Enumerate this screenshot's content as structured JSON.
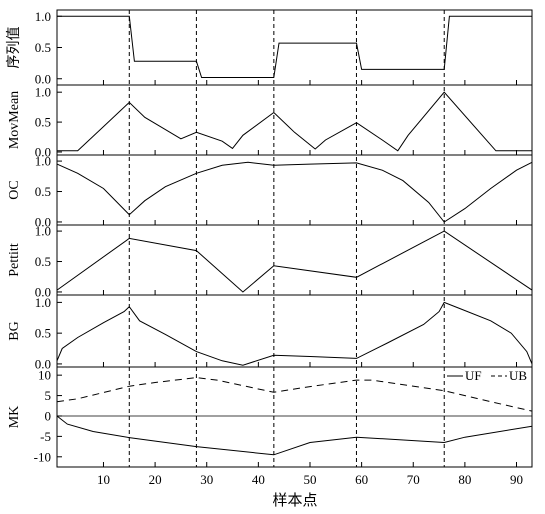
{
  "figure": {
    "xlabel": "样本点",
    "xlim": [
      1,
      93
    ],
    "xticks": [
      10,
      20,
      30,
      40,
      50,
      60,
      70,
      80,
      90
    ],
    "change_points": [
      15,
      28,
      43,
      59,
      76
    ]
  },
  "chart_data": [
    {
      "type": "line",
      "ylabel": "序列值",
      "ylim": [
        -0.1,
        1.1
      ],
      "yticks": [
        "0.0",
        "0.5",
        "1.0"
      ],
      "series": [
        {
          "style": "solid",
          "color": "#000000",
          "points": [
            [
              1,
              1
            ],
            [
              15,
              1
            ],
            [
              16,
              0.28
            ],
            [
              28,
              0.28
            ],
            [
              29,
              0.02
            ],
            [
              43,
              0.02
            ],
            [
              44,
              0.57
            ],
            [
              59,
              0.57
            ],
            [
              60,
              0.15
            ],
            [
              76,
              0.15
            ],
            [
              77,
              1
            ],
            [
              93,
              1
            ]
          ]
        }
      ]
    },
    {
      "type": "line",
      "ylabel": "MovMean",
      "ylim": [
        -0.05,
        1.12
      ],
      "yticks": [
        "0.0",
        "0.5",
        "1.0"
      ],
      "series": [
        {
          "style": "solid",
          "color": "#000000",
          "points": [
            [
              1,
              0.02
            ],
            [
              5,
              0.02
            ],
            [
              15,
              0.83
            ],
            [
              18,
              0.58
            ],
            [
              25,
              0.22
            ],
            [
              28,
              0.33
            ],
            [
              33,
              0.18
            ],
            [
              35,
              0.06
            ],
            [
              37,
              0.28
            ],
            [
              43,
              0.66
            ],
            [
              47,
              0.33
            ],
            [
              51,
              0.05
            ],
            [
              53,
              0.2
            ],
            [
              59,
              0.49
            ],
            [
              64,
              0.2
            ],
            [
              67,
              0.02
            ],
            [
              69,
              0.28
            ],
            [
              76,
              1.0
            ],
            [
              86,
              0.02
            ],
            [
              93,
              0.02
            ]
          ]
        }
      ]
    },
    {
      "type": "line",
      "ylabel": "OC",
      "ylim": [
        -0.05,
        1.1
      ],
      "yticks": [
        "0.0",
        "0.5",
        "1.0"
      ],
      "series": [
        {
          "style": "solid",
          "color": "#000000",
          "points": [
            [
              1,
              0.95
            ],
            [
              5,
              0.8
            ],
            [
              10,
              0.55
            ],
            [
              15,
              0.12
            ],
            [
              18,
              0.35
            ],
            [
              22,
              0.58
            ],
            [
              28,
              0.8
            ],
            [
              33,
              0.93
            ],
            [
              38,
              0.98
            ],
            [
              43,
              0.93
            ],
            [
              50,
              0.95
            ],
            [
              59,
              0.97
            ],
            [
              64,
              0.85
            ],
            [
              68,
              0.68
            ],
            [
              73,
              0.32
            ],
            [
              76,
              0.0
            ],
            [
              80,
              0.22
            ],
            [
              85,
              0.55
            ],
            [
              90,
              0.85
            ],
            [
              93,
              0.98
            ]
          ]
        }
      ]
    },
    {
      "type": "line",
      "ylabel": "Pettitt",
      "ylim": [
        -0.05,
        1.1
      ],
      "yticks": [
        "0.0",
        "0.5",
        "1.0"
      ],
      "series": [
        {
          "style": "solid",
          "color": "#000000",
          "points": [
            [
              1,
              0.03
            ],
            [
              15,
              0.88
            ],
            [
              28,
              0.68
            ],
            [
              37,
              0.0
            ],
            [
              43,
              0.43
            ],
            [
              59,
              0.24
            ],
            [
              76,
              1.0
            ],
            [
              93,
              0.03
            ]
          ]
        }
      ]
    },
    {
      "type": "line",
      "ylabel": "BG",
      "ylim": [
        -0.05,
        1.12
      ],
      "yticks": [
        "0.0",
        "0.5",
        "1.0"
      ],
      "series": [
        {
          "style": "solid",
          "color": "#000000",
          "points": [
            [
              1,
              0.05
            ],
            [
              2,
              0.25
            ],
            [
              5,
              0.43
            ],
            [
              10,
              0.67
            ],
            [
              14,
              0.85
            ],
            [
              15,
              0.93
            ],
            [
              17,
              0.7
            ],
            [
              22,
              0.48
            ],
            [
              28,
              0.2
            ],
            [
              33,
              0.05
            ],
            [
              37,
              -0.02
            ],
            [
              43,
              0.14
            ],
            [
              50,
              0.12
            ],
            [
              59,
              0.09
            ],
            [
              65,
              0.34
            ],
            [
              72,
              0.64
            ],
            [
              75,
              0.85
            ],
            [
              76,
              1.0
            ],
            [
              79,
              0.9
            ],
            [
              85,
              0.7
            ],
            [
              89,
              0.5
            ],
            [
              92,
              0.2
            ],
            [
              93,
              0.0
            ]
          ]
        }
      ]
    },
    {
      "type": "line",
      "ylabel": "MK",
      "ylim": [
        -12.5,
        12
      ],
      "yticks": [
        "-10",
        "-5",
        "0",
        "5",
        "10"
      ],
      "legend": {
        "placement": "top-right",
        "entries": [
          "UF",
          "UB"
        ]
      },
      "series": [
        {
          "name": "UF",
          "style": "solid",
          "color": "#000000",
          "points": [
            [
              1,
              0
            ],
            [
              3,
              -2
            ],
            [
              8,
              -3.8
            ],
            [
              15,
              -5.3
            ],
            [
              28,
              -7.5
            ],
            [
              43,
              -9.5
            ],
            [
              50,
              -6.5
            ],
            [
              59,
              -5.2
            ],
            [
              76,
              -6.5
            ],
            [
              80,
              -5.2
            ],
            [
              93,
              -2.5
            ]
          ]
        },
        {
          "name": "UB",
          "style": "dashed",
          "color": "#000000",
          "points": [
            [
              1,
              3.5
            ],
            [
              5,
              4.2
            ],
            [
              15,
              7.3
            ],
            [
              20,
              8.2
            ],
            [
              28,
              9.4
            ],
            [
              32,
              8.8
            ],
            [
              43,
              5.8
            ],
            [
              50,
              7.2
            ],
            [
              59,
              8.8
            ],
            [
              62,
              8.8
            ],
            [
              76,
              6.2
            ],
            [
              85,
              3.5
            ],
            [
              93,
              1.2
            ]
          ]
        },
        {
          "name": "",
          "style": "zero",
          "color": "#000000",
          "points": [
            [
              1,
              0
            ],
            [
              93,
              0
            ]
          ]
        }
      ]
    }
  ]
}
